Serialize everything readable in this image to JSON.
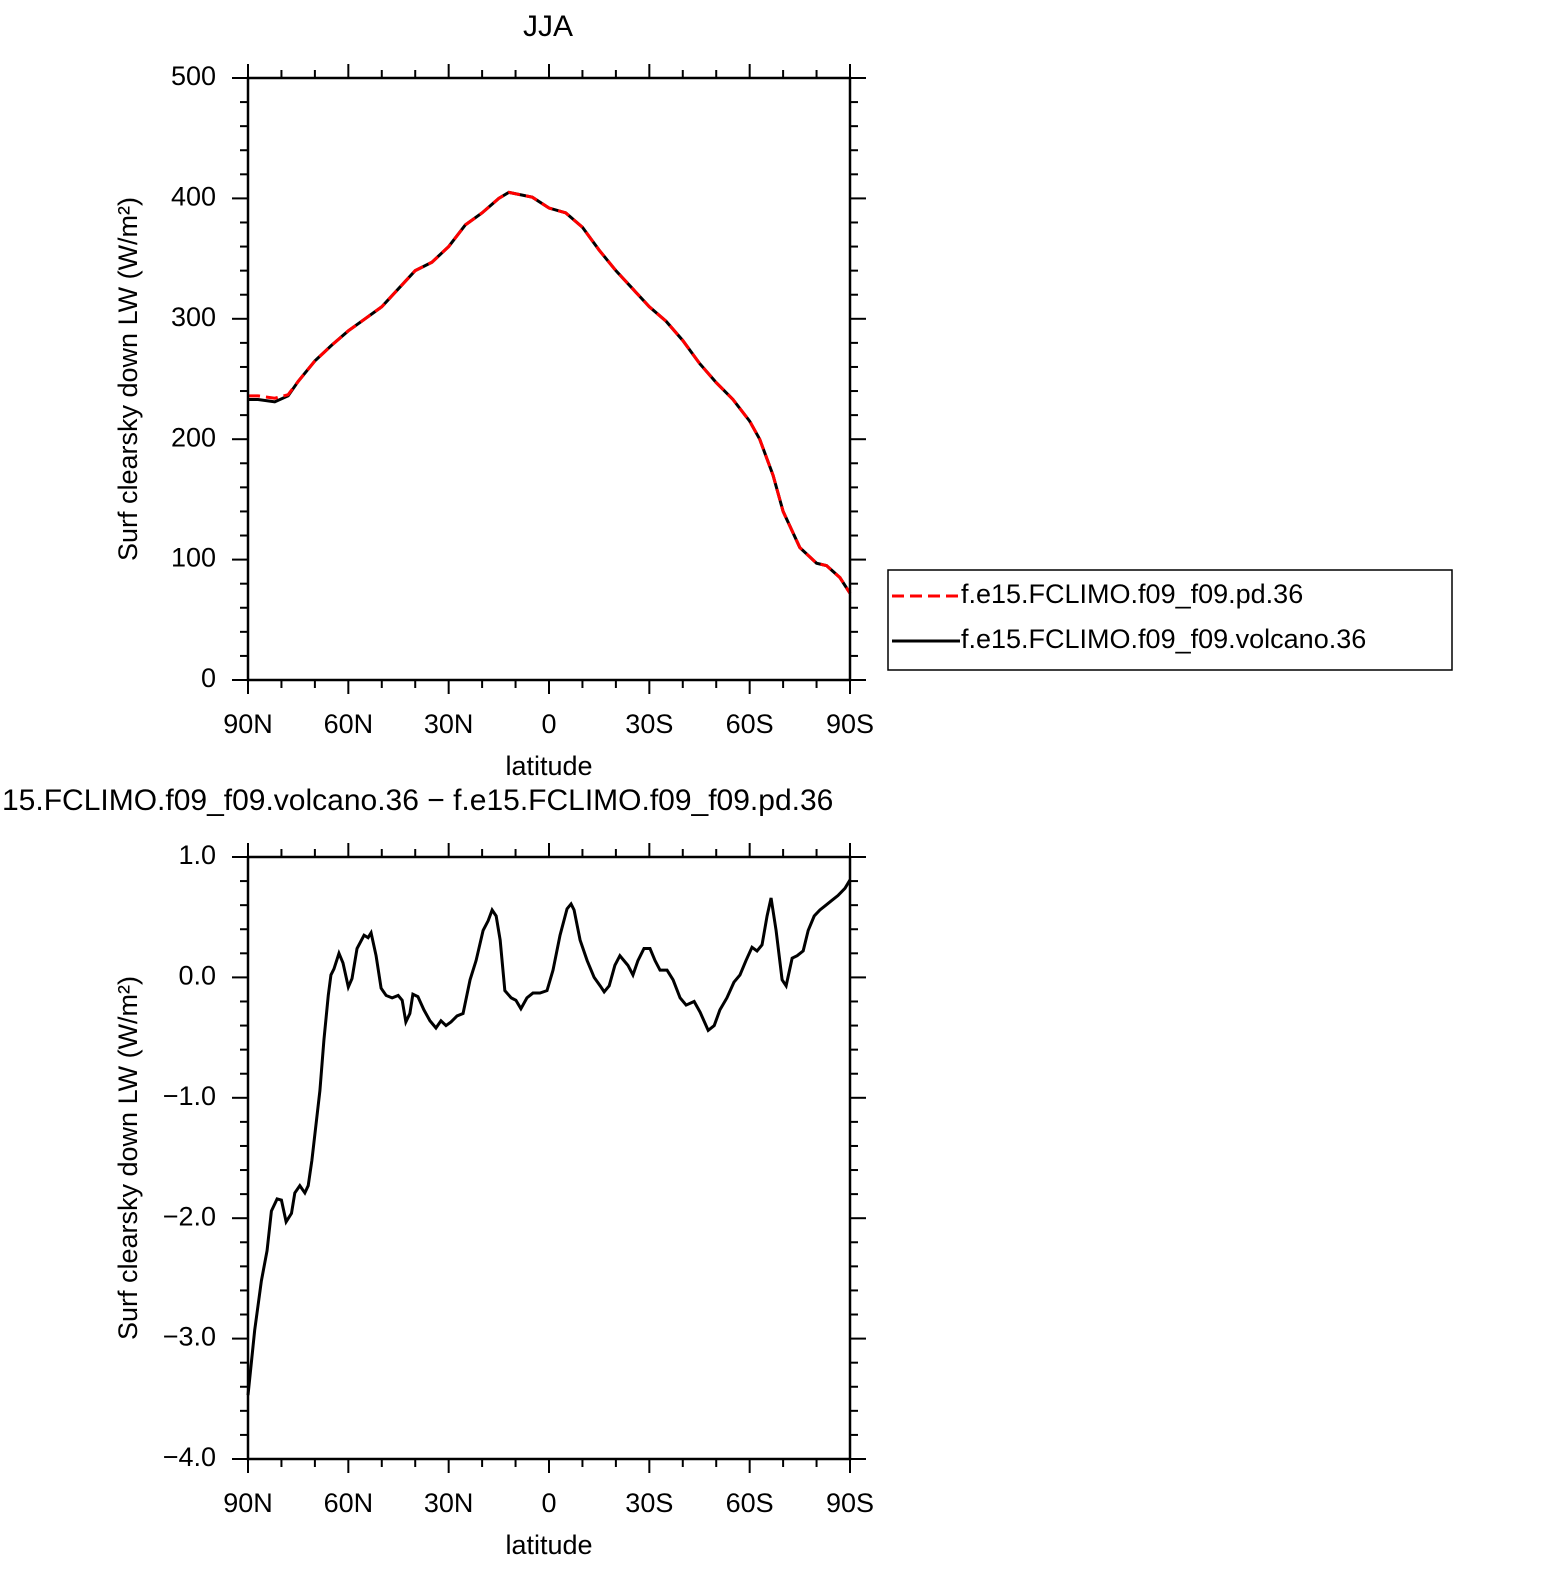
{
  "chart_data": [
    {
      "type": "line",
      "title": "JJA",
      "xlabel": "latitude",
      "ylabel": "Surf clearsky down LW (W/m²)",
      "x": [
        90,
        87,
        82,
        78,
        75,
        70,
        65,
        60,
        55,
        50,
        45,
        40,
        35,
        30,
        25,
        20,
        15,
        12,
        5,
        0,
        -5,
        -10,
        -15,
        -20,
        -25,
        -30,
        -35,
        -40,
        -45,
        -50,
        -55,
        -60,
        -63,
        -67,
        -70,
        -75,
        -80,
        -83,
        -87,
        -90
      ],
      "series": [
        {
          "name": "f.e15.FCLIMO.f09_f09.pd.36",
          "color": "#ff0000",
          "linestyle": "dashed",
          "values": [
            236,
            236,
            234,
            237,
            248,
            265,
            278,
            290,
            300,
            310,
            325,
            340,
            347,
            360,
            378,
            388,
            400,
            405,
            401,
            392,
            388,
            376,
            357,
            340,
            325,
            310,
            298,
            282,
            263,
            247,
            233,
            215,
            200,
            170,
            140,
            110,
            97,
            95,
            85,
            72
          ]
        },
        {
          "name": "f.e15.FCLIMO.f09_f09.volcano.36",
          "color": "#000000",
          "linestyle": "solid",
          "values": [
            233,
            233,
            231,
            236,
            248,
            265,
            278,
            290,
            300,
            310,
            325,
            340,
            347,
            360,
            378,
            388,
            400,
            405,
            401,
            392,
            388,
            376,
            357,
            340,
            325,
            310,
            298,
            282,
            263,
            247,
            233,
            215,
            200,
            170,
            140,
            110,
            97,
            95,
            85,
            72
          ]
        }
      ],
      "xlim": [
        90,
        -90
      ],
      "xticks": [
        {
          "value": 90,
          "label": "90N"
        },
        {
          "value": 60,
          "label": "60N"
        },
        {
          "value": 30,
          "label": "30N"
        },
        0,
        {
          "value": -30,
          "label": "30S"
        },
        {
          "value": -60,
          "label": "60S"
        },
        {
          "value": -90,
          "label": "90S"
        }
      ],
      "xminorticks": [
        80,
        70,
        50,
        40,
        20,
        10,
        -10,
        -20,
        -40,
        -50,
        -70,
        -80
      ],
      "ylim": [
        0,
        500
      ],
      "yticks": [
        0,
        100,
        200,
        300,
        400,
        500
      ],
      "yminorticks": [
        20,
        40,
        60,
        80,
        120,
        140,
        160,
        180,
        220,
        240,
        260,
        280,
        320,
        340,
        360,
        380,
        420,
        440,
        460,
        480
      ],
      "legend": "right"
    },
    {
      "type": "line",
      "title": "15.FCLIMO.f09_f09.volcano.36 − f.e15.FCLIMO.f09_f09.pd.36",
      "xlabel": "latitude",
      "ylabel": "Surf clearsky down LW (W/m²)",
      "x": [
        90,
        88,
        86,
        84.3,
        83,
        81.3,
        80,
        78.6,
        77,
        76,
        74.5,
        73,
        72,
        70.9,
        69.7,
        68.5,
        67.3,
        66,
        65.2,
        64.3,
        62.8,
        61.6,
        60,
        58.9,
        57.4,
        55.3,
        54.1,
        53.2,
        51.7,
        50.2,
        48.7,
        46.9,
        45.1,
        43.9,
        42.8,
        41.6,
        40.7,
        39.2,
        37.4,
        35.6,
        33.8,
        32.3,
        30.8,
        29.3,
        27.5,
        25.7,
        23.6,
        21.8,
        19.7,
        18.2,
        17,
        15.8,
        14.6,
        13.2,
        11.3,
        9.9,
        8.4,
        6.6,
        4.8,
        2.7,
        0.6,
        -1.2,
        -3.3,
        -5.4,
        -6.6,
        -7.5,
        -9.3,
        -11.4,
        -13.5,
        -15.3,
        -16.5,
        -18,
        -19.7,
        -21.2,
        -23.6,
        -25.1,
        -26.6,
        -28.4,
        -30.2,
        -31.7,
        -33.2,
        -35.3,
        -37.1,
        -39.2,
        -41,
        -43.4,
        -45.2,
        -47.6,
        -49.4,
        -51.1,
        -53.2,
        -55.3,
        -57.1,
        -58.9,
        -60.7,
        -62.2,
        -63.7,
        -65.2,
        -66.4,
        -67.9,
        -69.7,
        -70.9,
        -72.7,
        -74.2,
        -76,
        -77.5,
        -79.3,
        -81,
        -82.8,
        -84.6,
        -86.4,
        -88.5,
        -90
      ],
      "series": [
        {
          "color": "#000000",
          "linestyle": "solid",
          "values": [
            -3.47,
            -2.93,
            -2.52,
            -2.27,
            -1.94,
            -1.84,
            -1.85,
            -2.03,
            -1.96,
            -1.79,
            -1.73,
            -1.79,
            -1.73,
            -1.52,
            -1.23,
            -0.94,
            -0.52,
            -0.15,
            0.02,
            0.07,
            0.2,
            0.12,
            -0.08,
            -0.01,
            0.24,
            0.35,
            0.33,
            0.37,
            0.18,
            -0.09,
            -0.15,
            -0.17,
            -0.15,
            -0.19,
            -0.37,
            -0.3,
            -0.14,
            -0.16,
            -0.27,
            -0.36,
            -0.42,
            -0.36,
            -0.4,
            -0.37,
            -0.32,
            -0.3,
            -0.02,
            0.14,
            0.39,
            0.47,
            0.56,
            0.51,
            0.31,
            -0.11,
            -0.17,
            -0.19,
            -0.26,
            -0.17,
            -0.13,
            -0.13,
            -0.11,
            0.06,
            0.35,
            0.57,
            0.61,
            0.56,
            0.31,
            0.14,
            0,
            -0.07,
            -0.12,
            -0.07,
            0.1,
            0.18,
            0.1,
            0.02,
            0.14,
            0.24,
            0.24,
            0.14,
            0.06,
            0.06,
            -0.02,
            -0.17,
            -0.23,
            -0.2,
            -0.29,
            -0.44,
            -0.4,
            -0.27,
            -0.17,
            -0.04,
            0.02,
            0.14,
            0.25,
            0.22,
            0.27,
            0.51,
            0.66,
            0.39,
            -0.02,
            -0.07,
            0.16,
            0.18,
            0.22,
            0.39,
            0.51,
            0.56,
            0.6,
            0.64,
            0.68,
            0.74,
            0.81
          ]
        }
      ],
      "xlim": [
        90,
        -90
      ],
      "xticks": [
        {
          "value": 90,
          "label": "90N"
        },
        {
          "value": 60,
          "label": "60N"
        },
        {
          "value": 30,
          "label": "30N"
        },
        0,
        {
          "value": -30,
          "label": "30S"
        },
        {
          "value": -60,
          "label": "60S"
        },
        {
          "value": -90,
          "label": "90S"
        }
      ],
      "xminorticks": [
        80,
        70,
        50,
        40,
        20,
        10,
        -10,
        -20,
        -40,
        -50,
        -70,
        -80
      ],
      "ylim": [
        -4,
        1
      ],
      "yticks": [
        {
          "value": -4,
          "label": "−4.0"
        },
        {
          "value": -3,
          "label": "−3.0"
        },
        {
          "value": -2,
          "label": "−2.0"
        },
        {
          "value": -1,
          "label": "−1.0"
        },
        {
          "value": 0,
          "label": "0.0"
        },
        {
          "value": 1,
          "label": "1.0"
        }
      ],
      "yminorticks": [
        -3.8,
        -3.6,
        -3.4,
        -3.2,
        -2.8,
        -2.6,
        -2.4,
        -2.2,
        -1.8,
        -1.6,
        -1.4,
        -1.2,
        -0.8,
        -0.6,
        -0.4,
        -0.2,
        0.2,
        0.4,
        0.6,
        0.8
      ]
    }
  ]
}
